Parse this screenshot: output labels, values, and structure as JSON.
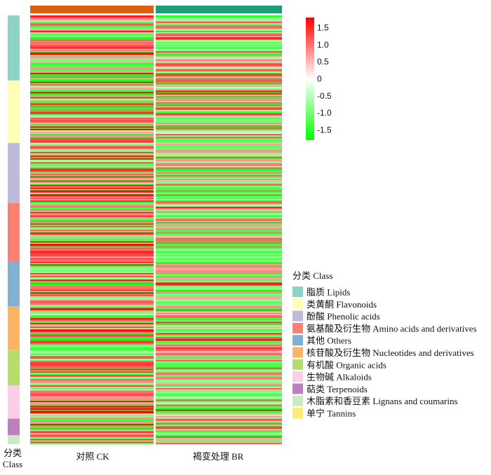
{
  "chart_data": {
    "type": "heatmap",
    "columns": [
      {
        "label": "对照 CK",
        "color": "#d95f0e"
      },
      {
        "label": "褐变处理 BR",
        "color": "#1b9e77"
      }
    ],
    "rows_axis_label": [
      "分类",
      "Class"
    ],
    "color_scale": {
      "low": "#00ff00",
      "mid": "#ffffff",
      "high": "#ff0000",
      "range": [
        -1.8,
        1.8
      ],
      "ticks": [
        1.5,
        1.0,
        0.5,
        0,
        -0.5,
        -1.0,
        -1.5
      ],
      "tick_labels": [
        "1.5",
        "1.0",
        "0.5",
        "0",
        "-0.5",
        "-1.0",
        "-1.5"
      ]
    },
    "legend": {
      "title": "分类 Class",
      "placement": "bottom-right"
    },
    "classes": [
      {
        "label": "脂质 Lipids",
        "color": "#8dd3c7",
        "count": 51
      },
      {
        "label": "类黄酮 Flavonoids",
        "color": "#ffffb3",
        "count": 49
      },
      {
        "label": "酚酸 Phenolic acids",
        "color": "#bebada",
        "count": 47
      },
      {
        "label": "氨基酸及衍生物 Amino acids and derivatives",
        "color": "#fb8072",
        "count": 46
      },
      {
        "label": "其他 Others",
        "color": "#80b1d3",
        "count": 35
      },
      {
        "label": "核苷酸及衍生物 Nucleotides and derivatives",
        "color": "#fdb462",
        "count": 34
      },
      {
        "label": "有机酸 Organic acids",
        "color": "#b3de69",
        "count": 28
      },
      {
        "label": "生物碱 Alkaloids",
        "color": "#fccde5",
        "count": 26
      },
      {
        "label": "萜类 Terpenoids",
        "color": "#bc80bd",
        "count": 13
      },
      {
        "label": "木脂素和香豆素 Lignans and coumarins",
        "color": "#ccebc5",
        "count": 7
      },
      {
        "label": "单宁 Tannins",
        "color": "#ffed6f",
        "count": 0
      }
    ],
    "total_rows": 336
  }
}
